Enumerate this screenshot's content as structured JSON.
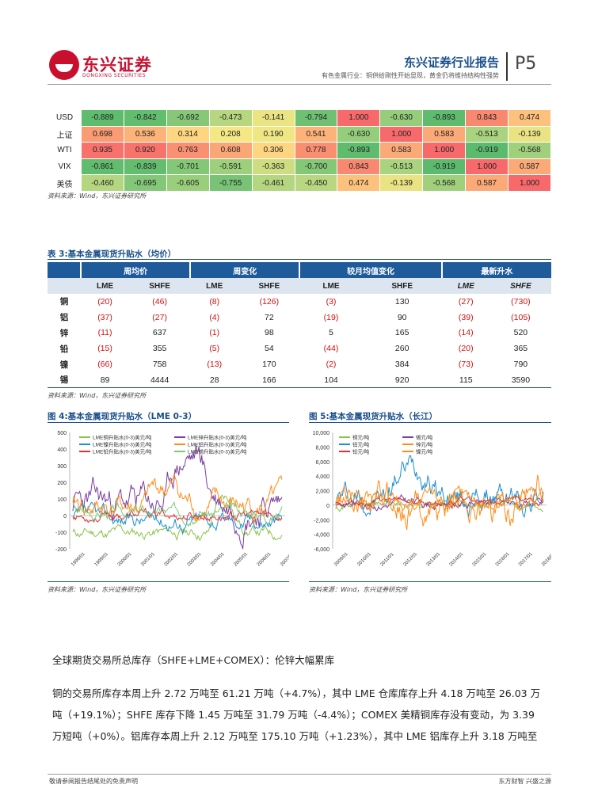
{
  "header": {
    "logo_cn": "东兴证券",
    "logo_en": "DONGXING SECURITIES",
    "title": "东兴证券行业报告",
    "subtitle": "有色金属行业：铜供给刚性开始显现，黄金仍将维持结构性强势",
    "page": "P5"
  },
  "corr_table": {
    "rows": [
      {
        "label": "USD",
        "values": [
          "-0.889",
          "-0.842",
          "-0.692",
          "-0.473",
          "-0.141",
          "-0.794",
          "1.000",
          "-0.630",
          "-0.893",
          "0.843",
          "0.474"
        ],
        "colors": [
          "#5fbb6e",
          "#63bd6f",
          "#86c878",
          "#b6d780",
          "#ebe485",
          "#6fc072",
          "#f8696b",
          "#95cd7b",
          "#5fbb6e",
          "#f98870",
          "#fcc17c"
        ]
      },
      {
        "label": "上证",
        "values": [
          "0.698",
          "0.536",
          "0.314",
          "0.208",
          "0.190",
          "0.541",
          "-0.630",
          "1.000",
          "0.583",
          "-0.513",
          "-0.139"
        ],
        "colors": [
          "#fa9b73",
          "#fcb379",
          "#fed580",
          "#f4e884",
          "#f0e784",
          "#fcb279",
          "#95cd7b",
          "#f8696b",
          "#fba977",
          "#a9d37e",
          "#e9e384"
        ]
      },
      {
        "label": "WTI",
        "values": [
          "0.935",
          "0.920",
          "0.763",
          "0.608",
          "0.306",
          "0.778",
          "-0.893",
          "0.583",
          "1.000",
          "-0.919",
          "-0.568"
        ],
        "colors": [
          "#f9716c",
          "#f9736d",
          "#fa9072",
          "#fba676",
          "#fed580",
          "#fa8e71",
          "#5fbb6e",
          "#fba977",
          "#f8696b",
          "#5bba6d",
          "#a0d07c"
        ]
      },
      {
        "label": "VIX",
        "values": [
          "-0.861",
          "-0.839",
          "-0.701",
          "-0.591",
          "-0.363",
          "-0.700",
          "0.843",
          "-0.513",
          "-0.919",
          "1.000",
          "0.587"
        ],
        "colors": [
          "#62bc6f",
          "#64bd6f",
          "#83c777",
          "#9ecf7c",
          "#cedd82",
          "#83c777",
          "#f98870",
          "#a9d37e",
          "#5bba6d",
          "#f8696b",
          "#fba977"
        ]
      },
      {
        "label": "美债",
        "values": [
          "-0.460",
          "-0.695",
          "-0.605",
          "-0.755",
          "-0.461",
          "-0.450",
          "0.474",
          "-0.139",
          "-0.568",
          "0.587",
          "1.000"
        ],
        "colors": [
          "#b5d680",
          "#84c778",
          "#99ce7b",
          "#78c375",
          "#b5d680",
          "#b8d780",
          "#fcc17c",
          "#e9e384",
          "#a0d07c",
          "#fba977",
          "#f8696b"
        ]
      }
    ],
    "source": "资料来源：Wind，东兴证券研究所"
  },
  "table3": {
    "title": "表 3:基本金属现货升贴水（均价）",
    "groups": [
      "周均价",
      "周变化",
      "较月均值变化",
      "最新升水"
    ],
    "subheaders": [
      "LME",
      "SHFE",
      "LME",
      "SHFE",
      "LME",
      "SHFE",
      "LME",
      "SHFE"
    ],
    "rows": [
      {
        "metal": "铜",
        "values": [
          "(20)",
          "(46)",
          "(8)",
          "(126)",
          "(3)",
          "130",
          "(27)",
          "(730)"
        ]
      },
      {
        "metal": "铝",
        "values": [
          "(37)",
          "(27)",
          "(4)",
          "72",
          "(19)",
          "90",
          "(39)",
          "(105)"
        ]
      },
      {
        "metal": "锌",
        "values": [
          "(11)",
          "637",
          "(1)",
          "98",
          "5",
          "165",
          "(14)",
          "520"
        ]
      },
      {
        "metal": "铅",
        "values": [
          "(15)",
          "355",
          "(5)",
          "54",
          "(44)",
          "260",
          "(20)",
          "365"
        ]
      },
      {
        "metal": "镍",
        "values": [
          "(66)",
          "758",
          "(13)",
          "170",
          "(2)",
          "384",
          "(73)",
          "790"
        ]
      },
      {
        "metal": "锡",
        "values": [
          "89",
          "4444",
          "28",
          "166",
          "104",
          "920",
          "115",
          "3590"
        ]
      }
    ],
    "source": "资料来源：Wind，东兴证券研究所"
  },
  "fig4": {
    "title": "图 4:基本金属现货升贴水（LME 0-3）",
    "source": "资料来源：Wind，东兴证券研究所",
    "legend": [
      "LME铜升贴水(0-3)美元/吨",
      "LME锌升贴水(0-3)美元/吨",
      "LME镍升贴水(0-3)美元/吨",
      "LME铝升贴水(0-3)美元/吨",
      "LME铅升贴水(0-3)美元/吨",
      "LME锡升贴水(0-3)美元/吨"
    ],
    "colors": [
      "#8bc34a",
      "#7b3fa0",
      "#1e90d0",
      "#ff8c1a",
      "#e03030",
      "#7ec87e"
    ],
    "yticks": [
      "500",
      "400",
      "300",
      "200",
      "100",
      "0",
      "-100",
      "-200"
    ],
    "xticks": [
      "1998/01",
      "1999/01",
      "2000/01",
      "2001/01",
      "2002/01",
      "2003/01",
      "2004/01",
      "2005/01",
      "2006/01",
      "2007/01"
    ]
  },
  "fig5": {
    "title": "图 5:基本金属现货升贴水（长江）",
    "source": "资料来源：Wind，东兴证券研究所",
    "legend": [
      "铜元/吨",
      "锡元/吨",
      "铝元/吨",
      "锌元/吨",
      "铅元/吨",
      "镍元/吨"
    ],
    "colors": [
      "#8bc34a",
      "#7b3fa0",
      "#1e90d0",
      "#ff8c1a",
      "#e03030",
      "#ff8c1a"
    ],
    "yticks": [
      "10,000",
      "8,000",
      "6,000",
      "4,000",
      "2,000",
      "0",
      "-2,000",
      "-4,000",
      "-6,000"
    ],
    "xticks": [
      "2009/01",
      "2010/01",
      "2011/01",
      "2012/01",
      "2013/01",
      "2014/01",
      "2015/01",
      "2016/01",
      "2017/01",
      "2018/01"
    ]
  },
  "body": {
    "heading": "全球期货交易所总库存（SHFE+LME+COMEX）：伦锌大幅累库",
    "para1": "铜的交易所库存本周上升 2.72 万吨至 61.21 万吨（+4.7%），其中 LME 仓库库存上升 4.18 万吨至 26.03 万",
    "para2": "吨（+19.1%）；SHFE 库存下降 1.45 万吨至 31.79 万吨（-4.4%）；COMEX 美精铜库存没有变动，为 3.39",
    "para3": "万短吨（+0%）。铝库存本周上升 2.12 万吨至 175.10 万吨（+1.23%），其中 LME 铝库存上升 3.18 万吨至"
  },
  "footer": {
    "left": "敬请参阅报告结尾处的免责声明",
    "right": "东方财智 兴盛之源"
  }
}
